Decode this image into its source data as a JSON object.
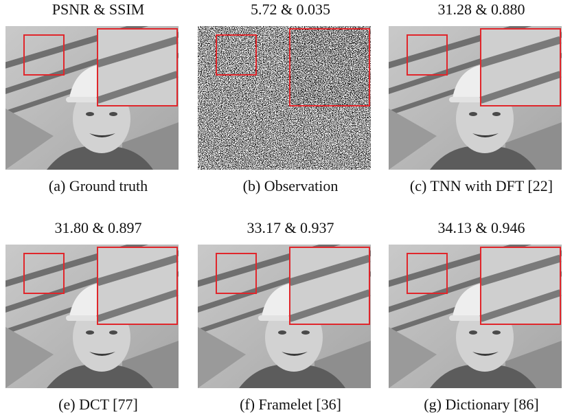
{
  "panels": [
    {
      "metric": "PSNR & SSIM",
      "caption": "(a) Ground truth",
      "noisy": false
    },
    {
      "metric": "5.72 & 0.035",
      "caption": "(b) Observation",
      "noisy": true
    },
    {
      "metric": "31.28 & 0.880",
      "caption": "(c) TNN with DFT [22]",
      "noisy": false
    },
    {
      "metric": "31.80 & 0.897",
      "caption": "(e) DCT [77]",
      "noisy": false
    },
    {
      "metric": "33.17 & 0.937",
      "caption": "(f) Framelet [36]",
      "noisy": false
    },
    {
      "metric": "34.13 & 0.946",
      "caption": "(g) Dictionary [86]",
      "noisy": false
    }
  ],
  "colors": {
    "zoom_box": "#e0262b"
  }
}
